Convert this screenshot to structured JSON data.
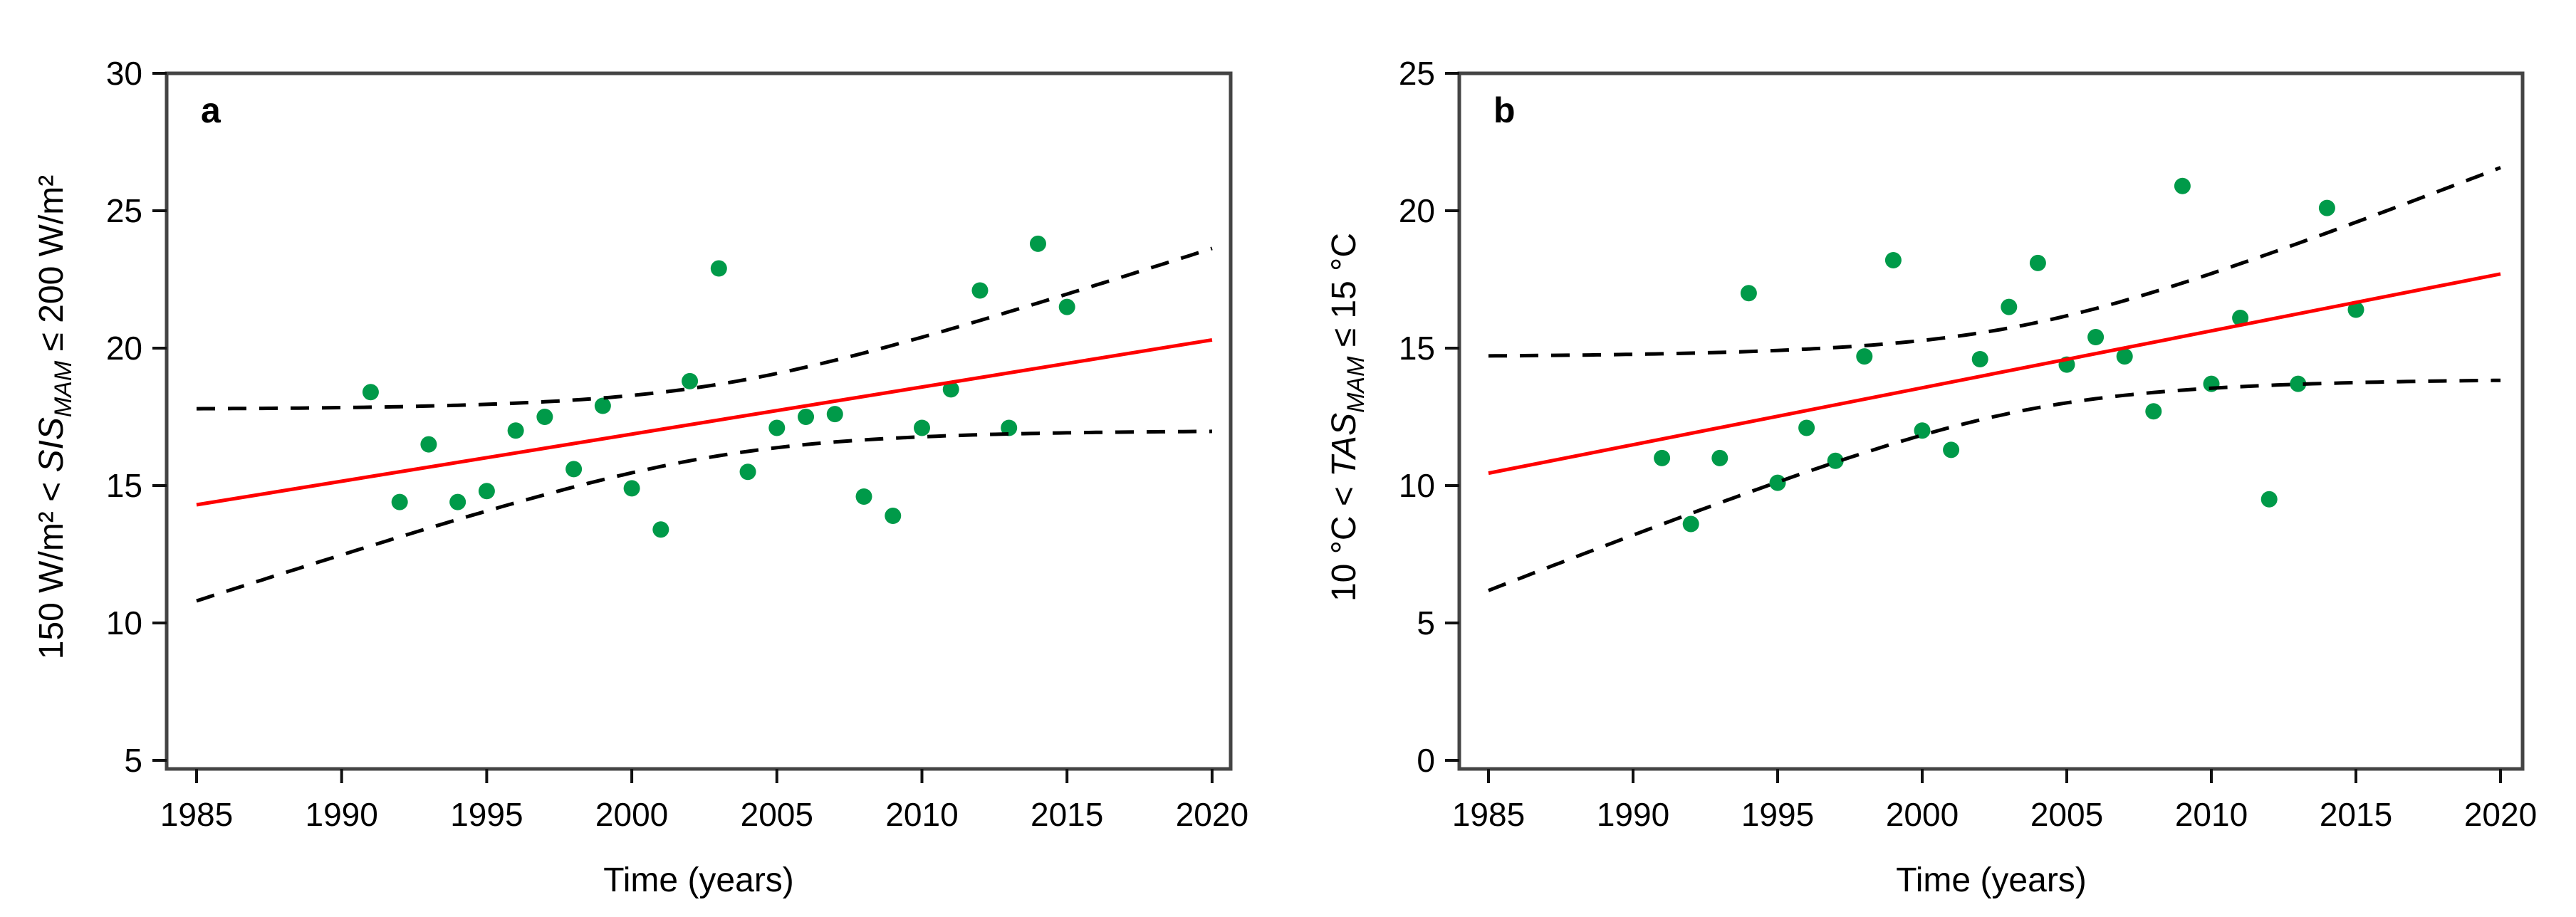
{
  "figure": {
    "background": "#ffffff",
    "colors": {
      "point": "#009a49",
      "fit_line": "#ff0000",
      "ci_line": "#000000",
      "frame": "#444444",
      "tick": "#111111",
      "text": "#000000"
    }
  },
  "chart_data": [
    {
      "type": "scatter",
      "panel_label": "a",
      "xlabel": "Time (years)",
      "ylabel_text": "150 W/m² < SIS_MAM ≤ 200 W/m²",
      "ylabel_parts": {
        "prefix": "150 W/m² < ",
        "var": "SIS",
        "sub": "MAM",
        "suffix": " ≤ 200 W/m²"
      },
      "xlim": [
        1984,
        2020.6
      ],
      "ylim": [
        5,
        30
      ],
      "x_ticks": [
        1985,
        1990,
        1995,
        2000,
        2005,
        2010,
        2015,
        2020
      ],
      "y_ticks": [
        30,
        25,
        20,
        15,
        10,
        5
      ],
      "grid": false,
      "legend": "none",
      "x": [
        1991,
        1992,
        1993,
        1994,
        1995,
        1996,
        1997,
        1998,
        1999,
        2000,
        2001,
        2002,
        2003,
        2004,
        2005,
        2006,
        2007,
        2008,
        2009,
        2010,
        2011,
        2012,
        2013,
        2014,
        2015
      ],
      "y": [
        18.4,
        14.4,
        16.5,
        14.4,
        14.8,
        17.0,
        17.5,
        15.6,
        17.9,
        14.9,
        13.4,
        18.8,
        22.9,
        15.5,
        17.1,
        17.5,
        17.6,
        14.6,
        13.9,
        17.1,
        18.5,
        22.1,
        17.1,
        23.8,
        21.5
      ],
      "fit_line": {
        "x": [
          1985,
          2020
        ],
        "y": [
          14.3,
          20.3
        ]
      },
      "ci_band": {
        "center_year": 2003,
        "min_halfwidth": 1.3,
        "spread": 52,
        "upper_endpoints": {
          "y1985": 17.8,
          "y2020": 23.7
        },
        "lower_endpoints": {
          "y1985": 10.8,
          "y2020": 17.0
        }
      }
    },
    {
      "type": "scatter",
      "panel_label": "b",
      "xlabel": "Time (years)",
      "ylabel_text": "10 °C < TAS_MAM ≤ 15 °C",
      "ylabel_parts": {
        "prefix": "10 °C < ",
        "var": "TAS",
        "sub": "MAM",
        "suffix": " ≤ 15 °C"
      },
      "xlim": [
        1984,
        2020.6
      ],
      "ylim": [
        0,
        25
      ],
      "x_ticks": [
        1985,
        1990,
        1995,
        2000,
        2005,
        2010,
        2015,
        2020
      ],
      "y_ticks": [
        25,
        20,
        15,
        10,
        5,
        0
      ],
      "grid": false,
      "legend": "none",
      "x": [
        1991,
        1992,
        1993,
        1994,
        1995,
        1996,
        1997,
        1998,
        1999,
        2000,
        2001,
        2002,
        2003,
        2004,
        2005,
        2006,
        2007,
        2008,
        2009,
        2010,
        2011,
        2012,
        2013,
        2014,
        2015
      ],
      "y": [
        11.0,
        8.6,
        11.0,
        17.0,
        10.1,
        12.1,
        10.9,
        14.7,
        18.2,
        12.0,
        11.3,
        14.6,
        16.5,
        18.1,
        14.4,
        15.4,
        14.7,
        12.7,
        20.9,
        13.7,
        16.1,
        9.5,
        13.7,
        20.1,
        16.4
      ],
      "fit_line": {
        "x": [
          1985,
          2020
        ],
        "y": [
          10.45,
          17.7
        ]
      },
      "ci_band": {
        "center_year": 2003.5,
        "min_halfwidth": 1.55,
        "spread": 52,
        "upper_endpoints": {
          "y1985": 14.7,
          "y2020": 21.6
        },
        "lower_endpoints": {
          "y1985": 6.2,
          "y2020": 13.8
        }
      }
    }
  ]
}
